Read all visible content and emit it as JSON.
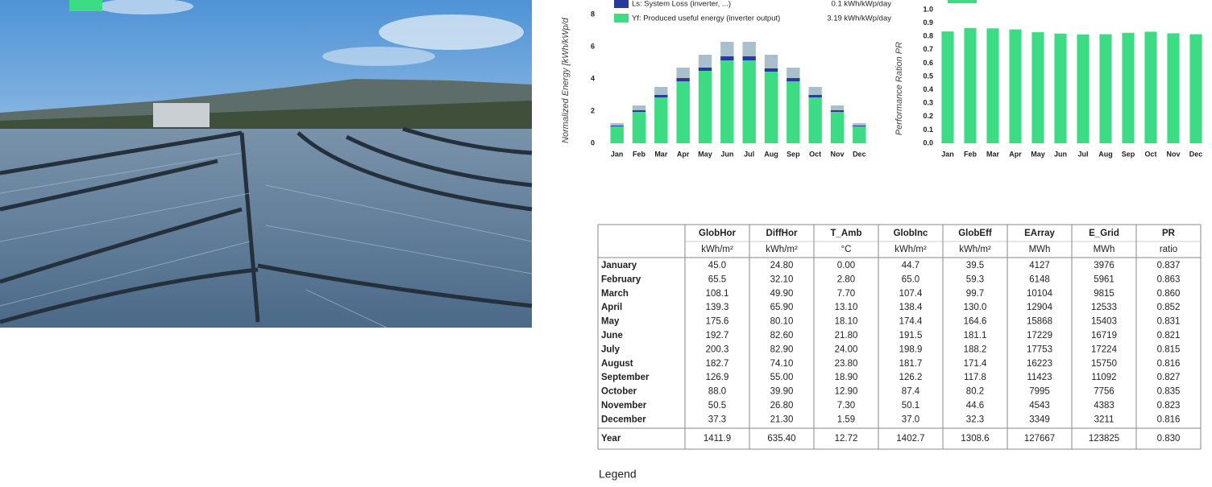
{
  "chart_data": [
    {
      "type": "stacked_bar",
      "y_label": "Normalized Energy [kWh/kWp/d",
      "categories": [
        "Jan",
        "Feb",
        "Mar",
        "Apr",
        "May",
        "Jun",
        "Jul",
        "Aug",
        "Sep",
        "Oct",
        "Nov",
        "Dec"
      ],
      "series": [
        {
          "name": "Yf: Produced useful energy (inverter output)",
          "legend_value": "3.19 kWh/kWp/day",
          "color": "#3ddc84",
          "values": [
            1.05,
            1.95,
            2.85,
            3.85,
            4.5,
            5.15,
            5.15,
            4.45,
            3.85,
            2.85,
            1.95,
            1.05
          ]
        },
        {
          "name": "Ls: System Loss (inverter, ...)",
          "legend_value": "0.1 kWh/kWp/day",
          "color": "#2a3a9a",
          "values": [
            0.05,
            0.1,
            0.15,
            0.2,
            0.2,
            0.25,
            0.25,
            0.2,
            0.2,
            0.15,
            0.1,
            0.05
          ]
        },
        {
          "color": "#a9bfcc",
          "values": [
            0.15,
            0.3,
            0.5,
            0.65,
            0.8,
            0.9,
            0.9,
            0.85,
            0.65,
            0.5,
            0.3,
            0.15
          ]
        }
      ],
      "ylim": [
        0,
        8
      ],
      "yticks": [
        0,
        2,
        4,
        6,
        8
      ]
    },
    {
      "type": "bar",
      "y_label": "Performance Ration PR",
      "categories": [
        "Jan",
        "Feb",
        "Mar",
        "Apr",
        "May",
        "Jun",
        "Jul",
        "Aug",
        "Sep",
        "Oct",
        "Nov",
        "Dec"
      ],
      "values": [
        0.837,
        0.863,
        0.86,
        0.852,
        0.831,
        0.821,
        0.815,
        0.816,
        0.827,
        0.835,
        0.823,
        0.816
      ],
      "color": "#3ddc84",
      "ylim": [
        0,
        1
      ],
      "yticks": [
        {
          "value": 0,
          "label": "0.0"
        },
        0.1,
        0.2,
        0.3,
        0.4,
        0.5,
        0.6,
        0.7,
        0.8,
        0.9,
        {
          "value": 1,
          "label": "1.0"
        }
      ]
    }
  ],
  "table": {
    "columns": [
      {
        "name": "GlobHor",
        "unit": "kWh/m²"
      },
      {
        "name": "DiffHor",
        "unit": "kWh/m²"
      },
      {
        "name": "T_Amb",
        "unit": "°C"
      },
      {
        "name": "GlobInc",
        "unit": "kWh/m²"
      },
      {
        "name": "GlobEff",
        "unit": "kWh/m²"
      },
      {
        "name": "EArray",
        "unit": "MWh"
      },
      {
        "name": "E_Grid",
        "unit": "MWh"
      },
      {
        "name": "PR",
        "unit": "ratio"
      }
    ],
    "rows": [
      [
        "January",
        "45.0",
        "24.80",
        "0.00",
        "44.7",
        "39.5",
        "4127",
        "3976",
        "0.837"
      ],
      [
        "February",
        "65.5",
        "32.10",
        "2.80",
        "65.0",
        "59.3",
        "6148",
        "5961",
        "0.863"
      ],
      [
        "March",
        "108.1",
        "49.90",
        "7.70",
        "107.4",
        "99.7",
        "10104",
        "9815",
        "0.860"
      ],
      [
        "April",
        "139.3",
        "65.90",
        "13.10",
        "138.4",
        "130.0",
        "12904",
        "12533",
        "0.852"
      ],
      [
        "May",
        "175.6",
        "80.10",
        "18.10",
        "174.4",
        "164.6",
        "15868",
        "15403",
        "0.831"
      ],
      [
        "June",
        "192.7",
        "82.60",
        "21.80",
        "191.5",
        "181.1",
        "17229",
        "16719",
        "0.821"
      ],
      [
        "July",
        "200.3",
        "82.90",
        "24.00",
        "198.9",
        "188.2",
        "17753",
        "17224",
        "0.815"
      ],
      [
        "August",
        "182.7",
        "74.10",
        "23.80",
        "181.7",
        "171.4",
        "16223",
        "15750",
        "0.816"
      ],
      [
        "September",
        "126.9",
        "55.00",
        "18.90",
        "126.2",
        "117.8",
        "11423",
        "11092",
        "0.827"
      ],
      [
        "October",
        "88.0",
        "39.90",
        "12.90",
        "87.4",
        "80.2",
        "7995",
        "7756",
        "0.835"
      ],
      [
        "November",
        "50.5",
        "26.80",
        "7.30",
        "50.1",
        "44.6",
        "4543",
        "4383",
        "0.823"
      ],
      [
        "December",
        "37.3",
        "21.30",
        "1.59",
        "37.0",
        "32.3",
        "3349",
        "3211",
        "0.816"
      ]
    ],
    "total": [
      "Year",
      "1411.9",
      "635.40",
      "12.72",
      "1402.7",
      "1308.6",
      "127667",
      "123825",
      "0.830"
    ]
  },
  "legend_heading": "Legend"
}
